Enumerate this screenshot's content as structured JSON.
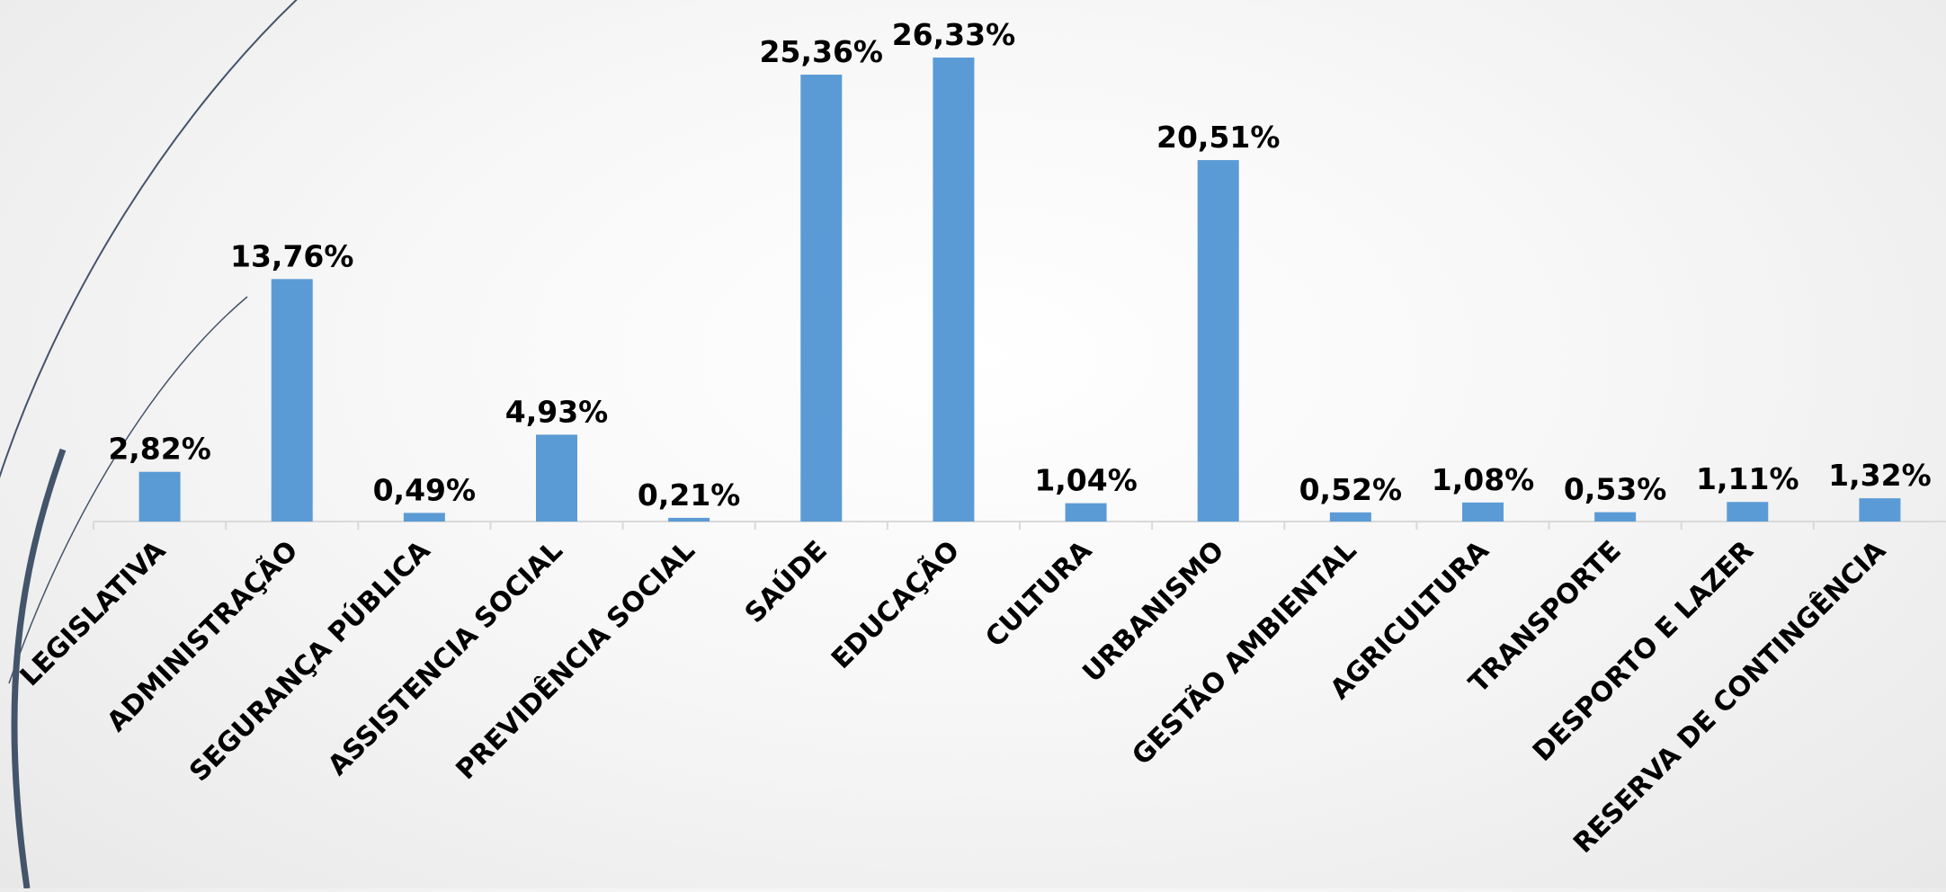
{
  "chart_data": {
    "type": "bar",
    "categories": [
      "LEGISLATIVA",
      "ADMINISTRAÇÃO",
      "SEGURANÇA PÚBLICA",
      "ASSISTENCIA SOCIAL",
      "PREVIDÊNCIA SOCIAL",
      "SAÚDE",
      "EDUCAÇÃO",
      "CULTURA",
      "URBANISMO",
      "GESTÃO AMBIENTAL",
      "AGRICULTURA",
      "TRANSPORTE",
      "DESPORTO E LAZER",
      "RESERVA DE CONTINGÊNCIA"
    ],
    "values": [
      2.82,
      13.76,
      0.49,
      4.93,
      0.21,
      25.36,
      26.33,
      1.04,
      20.51,
      0.52,
      1.08,
      0.53,
      1.11,
      1.32
    ],
    "data_labels": [
      "2,82%",
      "13,76%",
      "0,49%",
      "4,93%",
      "0,21%",
      "25,36%",
      "26,33%",
      "1,04%",
      "20,51%",
      "0,52%",
      "1,08%",
      "0,53%",
      "1,11%",
      "1,32%"
    ],
    "title": "",
    "xlabel": "",
    "ylabel": "",
    "ylim": [
      0,
      26.33
    ],
    "grid": false,
    "legend": "none",
    "bar_color": "#5b9bd5",
    "axis_color": "#d9d9d9"
  },
  "decoration": {
    "arc_color": "#44546a"
  }
}
